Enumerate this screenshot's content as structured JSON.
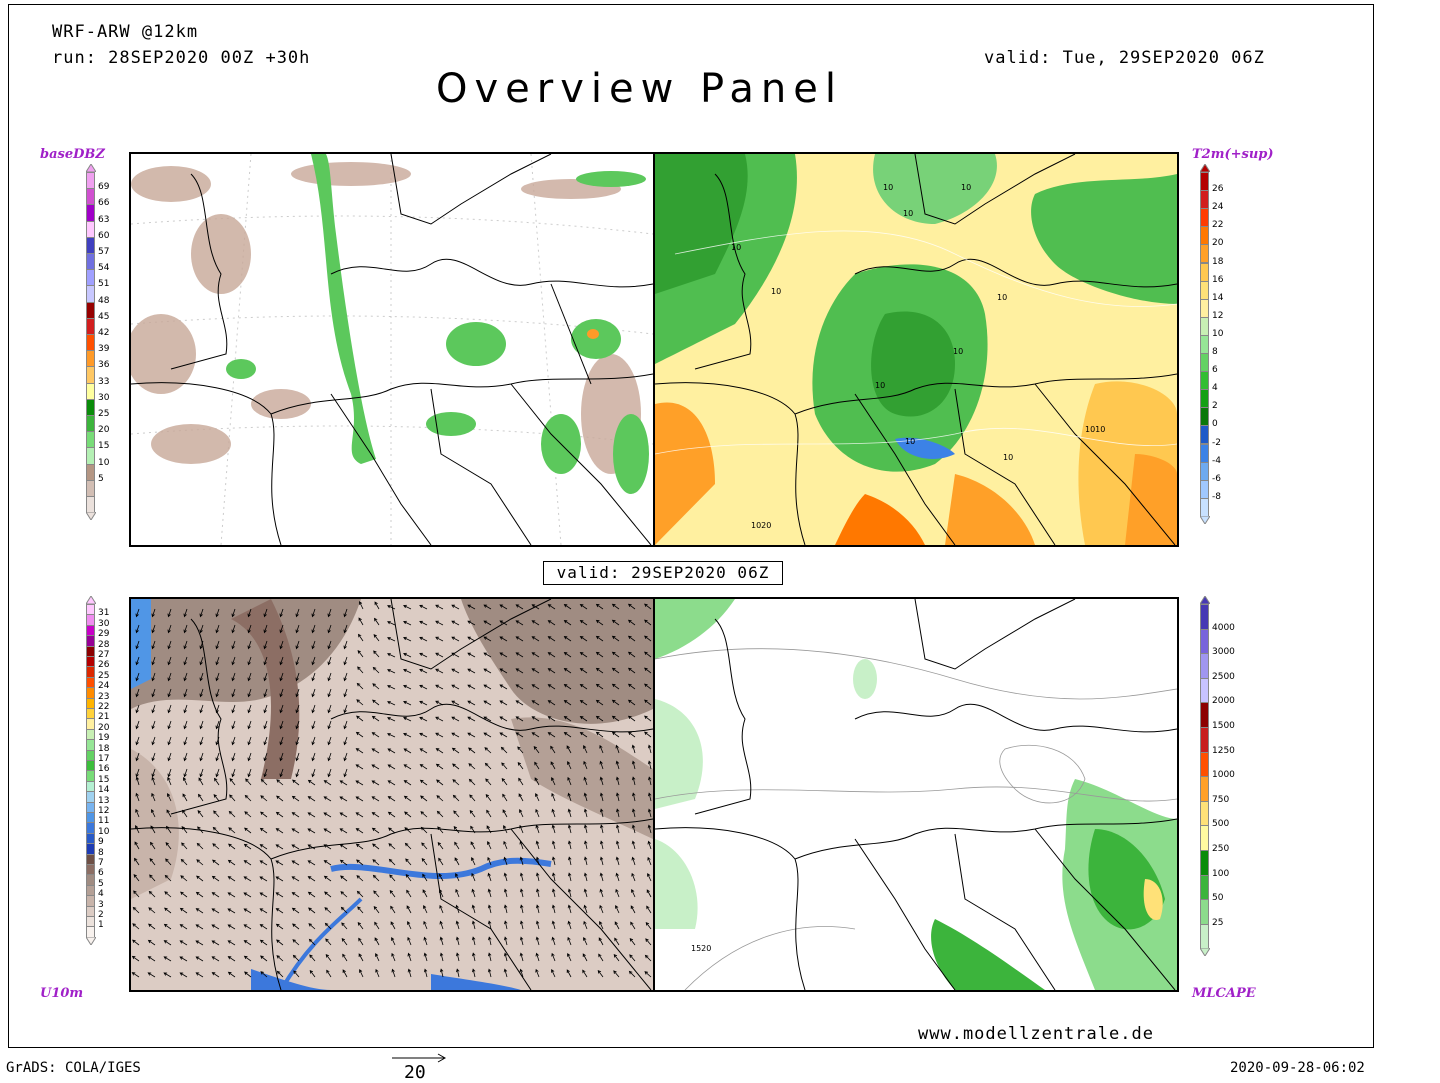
{
  "header": {
    "model": "WRF-ARW @12km",
    "run": "run: 28SEP2020 00Z +30h",
    "valid": "valid: Tue, 29SEP2020 06Z",
    "title": "Overview Panel"
  },
  "panels": {
    "top_left": {
      "label": "baseDBZ"
    },
    "top_right": {
      "label": "T2m(+sup)",
      "contour_labels": [
        "10",
        "10",
        "10",
        "10",
        "10",
        "10",
        "10",
        "10",
        "1010",
        "1020",
        "10",
        "10"
      ]
    },
    "bottom_left": {
      "label": "U10m"
    },
    "bottom_right": {
      "label": "MLCAPE",
      "contour_labels": [
        "1520"
      ]
    }
  },
  "valid_box": "valid: 29SEP2020 06Z",
  "colorbars": {
    "dbz": {
      "labels": [
        "69",
        "66",
        "63",
        "60",
        "57",
        "54",
        "51",
        "48",
        "45",
        "42",
        "39",
        "36",
        "33",
        "30",
        "25",
        "20",
        "15",
        "10",
        "5"
      ],
      "colors": [
        "#f0a0f0",
        "#d050d0",
        "#a000c8",
        "#ffc8ff",
        "#4040c0",
        "#7070e0",
        "#a0a0ff",
        "#c8c8ff",
        "#960000",
        "#d21e1e",
        "#ff5000",
        "#ff9a28",
        "#ffc864",
        "#ffffa0",
        "#0a8c0a",
        "#3cb43c",
        "#78dc78",
        "#b4f0b4",
        "#b49684",
        "#d2beb4",
        "#ebe1dc"
      ]
    },
    "t2m": {
      "labels": [
        "26",
        "24",
        "22",
        "20",
        "18",
        "16",
        "14",
        "12",
        "10",
        "8",
        "6",
        "4",
        "2",
        "0",
        "-2",
        "-4",
        "-6",
        "-8"
      ],
      "colors": [
        "#b40000",
        "#d21e1e",
        "#ff3c00",
        "#ff7800",
        "#ffa028",
        "#ffc850",
        "#ffe178",
        "#fff0a0",
        "#c8f0b4",
        "#96e696",
        "#64d264",
        "#32be32",
        "#14a014",
        "#0a780a",
        "#1e5ac8",
        "#3c82e6",
        "#6eaaf0",
        "#a0c8ff",
        "#c8e1ff"
      ]
    },
    "u10": {
      "labels": [
        "31",
        "30",
        "29",
        "28",
        "27",
        "26",
        "25",
        "24",
        "23",
        "22",
        "21",
        "20",
        "19",
        "18",
        "17",
        "16",
        "15",
        "14",
        "13",
        "12",
        "11",
        "10",
        "9",
        "8",
        "7",
        "6",
        "5",
        "4",
        "3",
        "2",
        "1"
      ],
      "colors": [
        "#ffc8ff",
        "#f08cf0",
        "#c800c8",
        "#960096",
        "#8c0000",
        "#b40000",
        "#dc2800",
        "#ff5000",
        "#ff8c00",
        "#ffb400",
        "#ffd23c",
        "#fff0a0",
        "#c8f0b4",
        "#96e696",
        "#64d264",
        "#3cbe3c",
        "#78dc78",
        "#b4f0d2",
        "#a0d2f0",
        "#78b4f0",
        "#5096e6",
        "#3c78dc",
        "#285ac8",
        "#1e3cb4",
        "#6e5046",
        "#8c6e64",
        "#a08c82",
        "#b4a096",
        "#c8b4aa",
        "#dcccc4",
        "#ece2dc",
        "#f8f2ee"
      ]
    },
    "cape": {
      "labels": [
        "4000",
        "3000",
        "2500",
        "2000",
        "1500",
        "1250",
        "1000",
        "750",
        "500",
        "250",
        "100",
        "50",
        "25"
      ],
      "colors": [
        "#4638b4",
        "#7864dc",
        "#a096f0",
        "#c8c3ff",
        "#8c0000",
        "#c81e1e",
        "#ff5000",
        "#ffa028",
        "#ffe178",
        "#fffaa0",
        "#0a8c0a",
        "#3cb43c",
        "#8cdc8c",
        "#c8f0c8"
      ]
    }
  },
  "footer": {
    "grads": "GrADS: COLA/IGES",
    "vector_ref": "20",
    "timestamp": "2020-09-28-06:02",
    "url": "www.modellzentrale.de"
  },
  "map_colors": {
    "dbz_green": "#5cc85c",
    "dbz_brown": "#c8a898",
    "t2m_yellow": "#fff0a0",
    "t2m_orange": "#ffa028",
    "t2m_green": "#50be50",
    "u10_brown": "#c8b0a4",
    "u10_blue": "#3c78dc",
    "cape_green": "#78d278"
  }
}
